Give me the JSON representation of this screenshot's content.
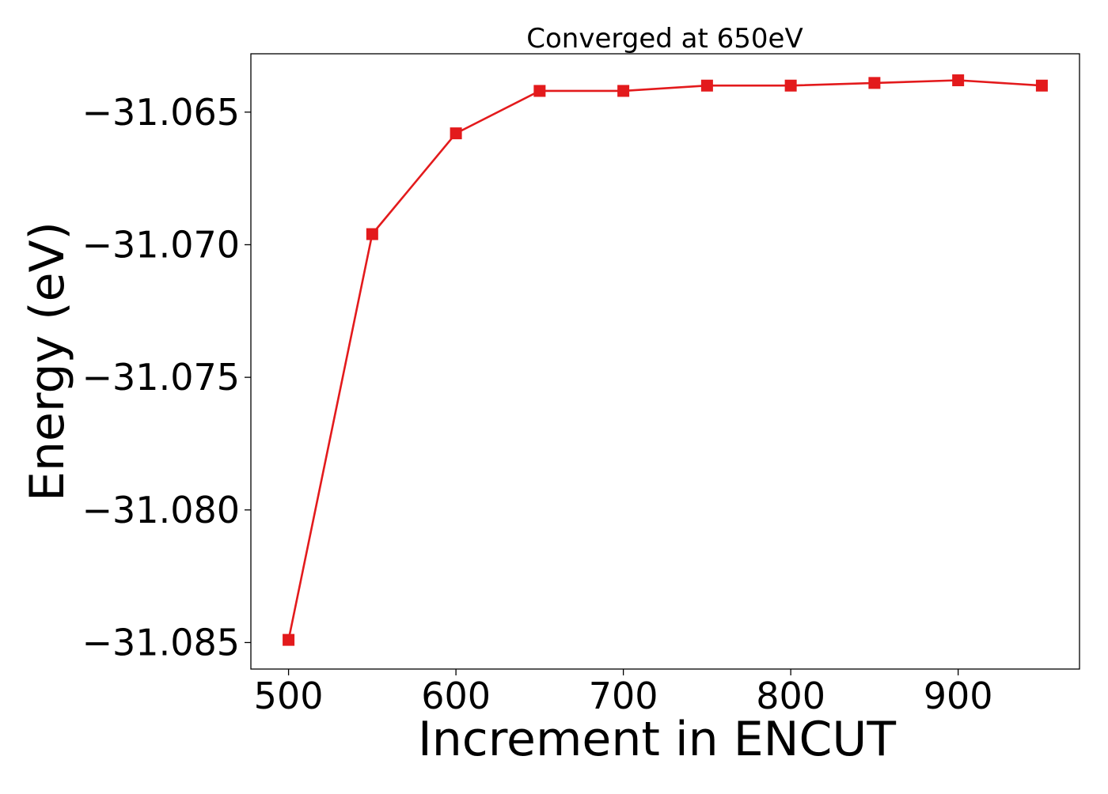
{
  "chart_data": {
    "type": "line",
    "title": "Converged at 650eV",
    "xlabel": "Increment in ENCUT",
    "ylabel": "Energy (eV)",
    "x": [
      500,
      550,
      600,
      650,
      700,
      750,
      800,
      850,
      900,
      950
    ],
    "series": [
      {
        "values": [
          -31.0849,
          -31.0696,
          -31.0658,
          -31.0642,
          -31.0642,
          -31.064,
          -31.064,
          -31.0639,
          -31.0638,
          -31.064
        ],
        "color": "#e31a1c",
        "marker": "square"
      }
    ],
    "xlim": [
      477.5,
      972.5
    ],
    "ylim": [
      -31.086,
      -31.0628
    ],
    "xticks": [
      500,
      600,
      700,
      800,
      900
    ],
    "xtick_labels": [
      "500",
      "600",
      "700",
      "800",
      "900"
    ],
    "yticks": [
      -31.065,
      -31.07,
      -31.075,
      -31.08,
      -31.085
    ],
    "ytick_labels": [
      "−31.065",
      "−31.070",
      "−31.075",
      "−31.080",
      "−31.085"
    ],
    "grid": false,
    "legend": "none"
  }
}
